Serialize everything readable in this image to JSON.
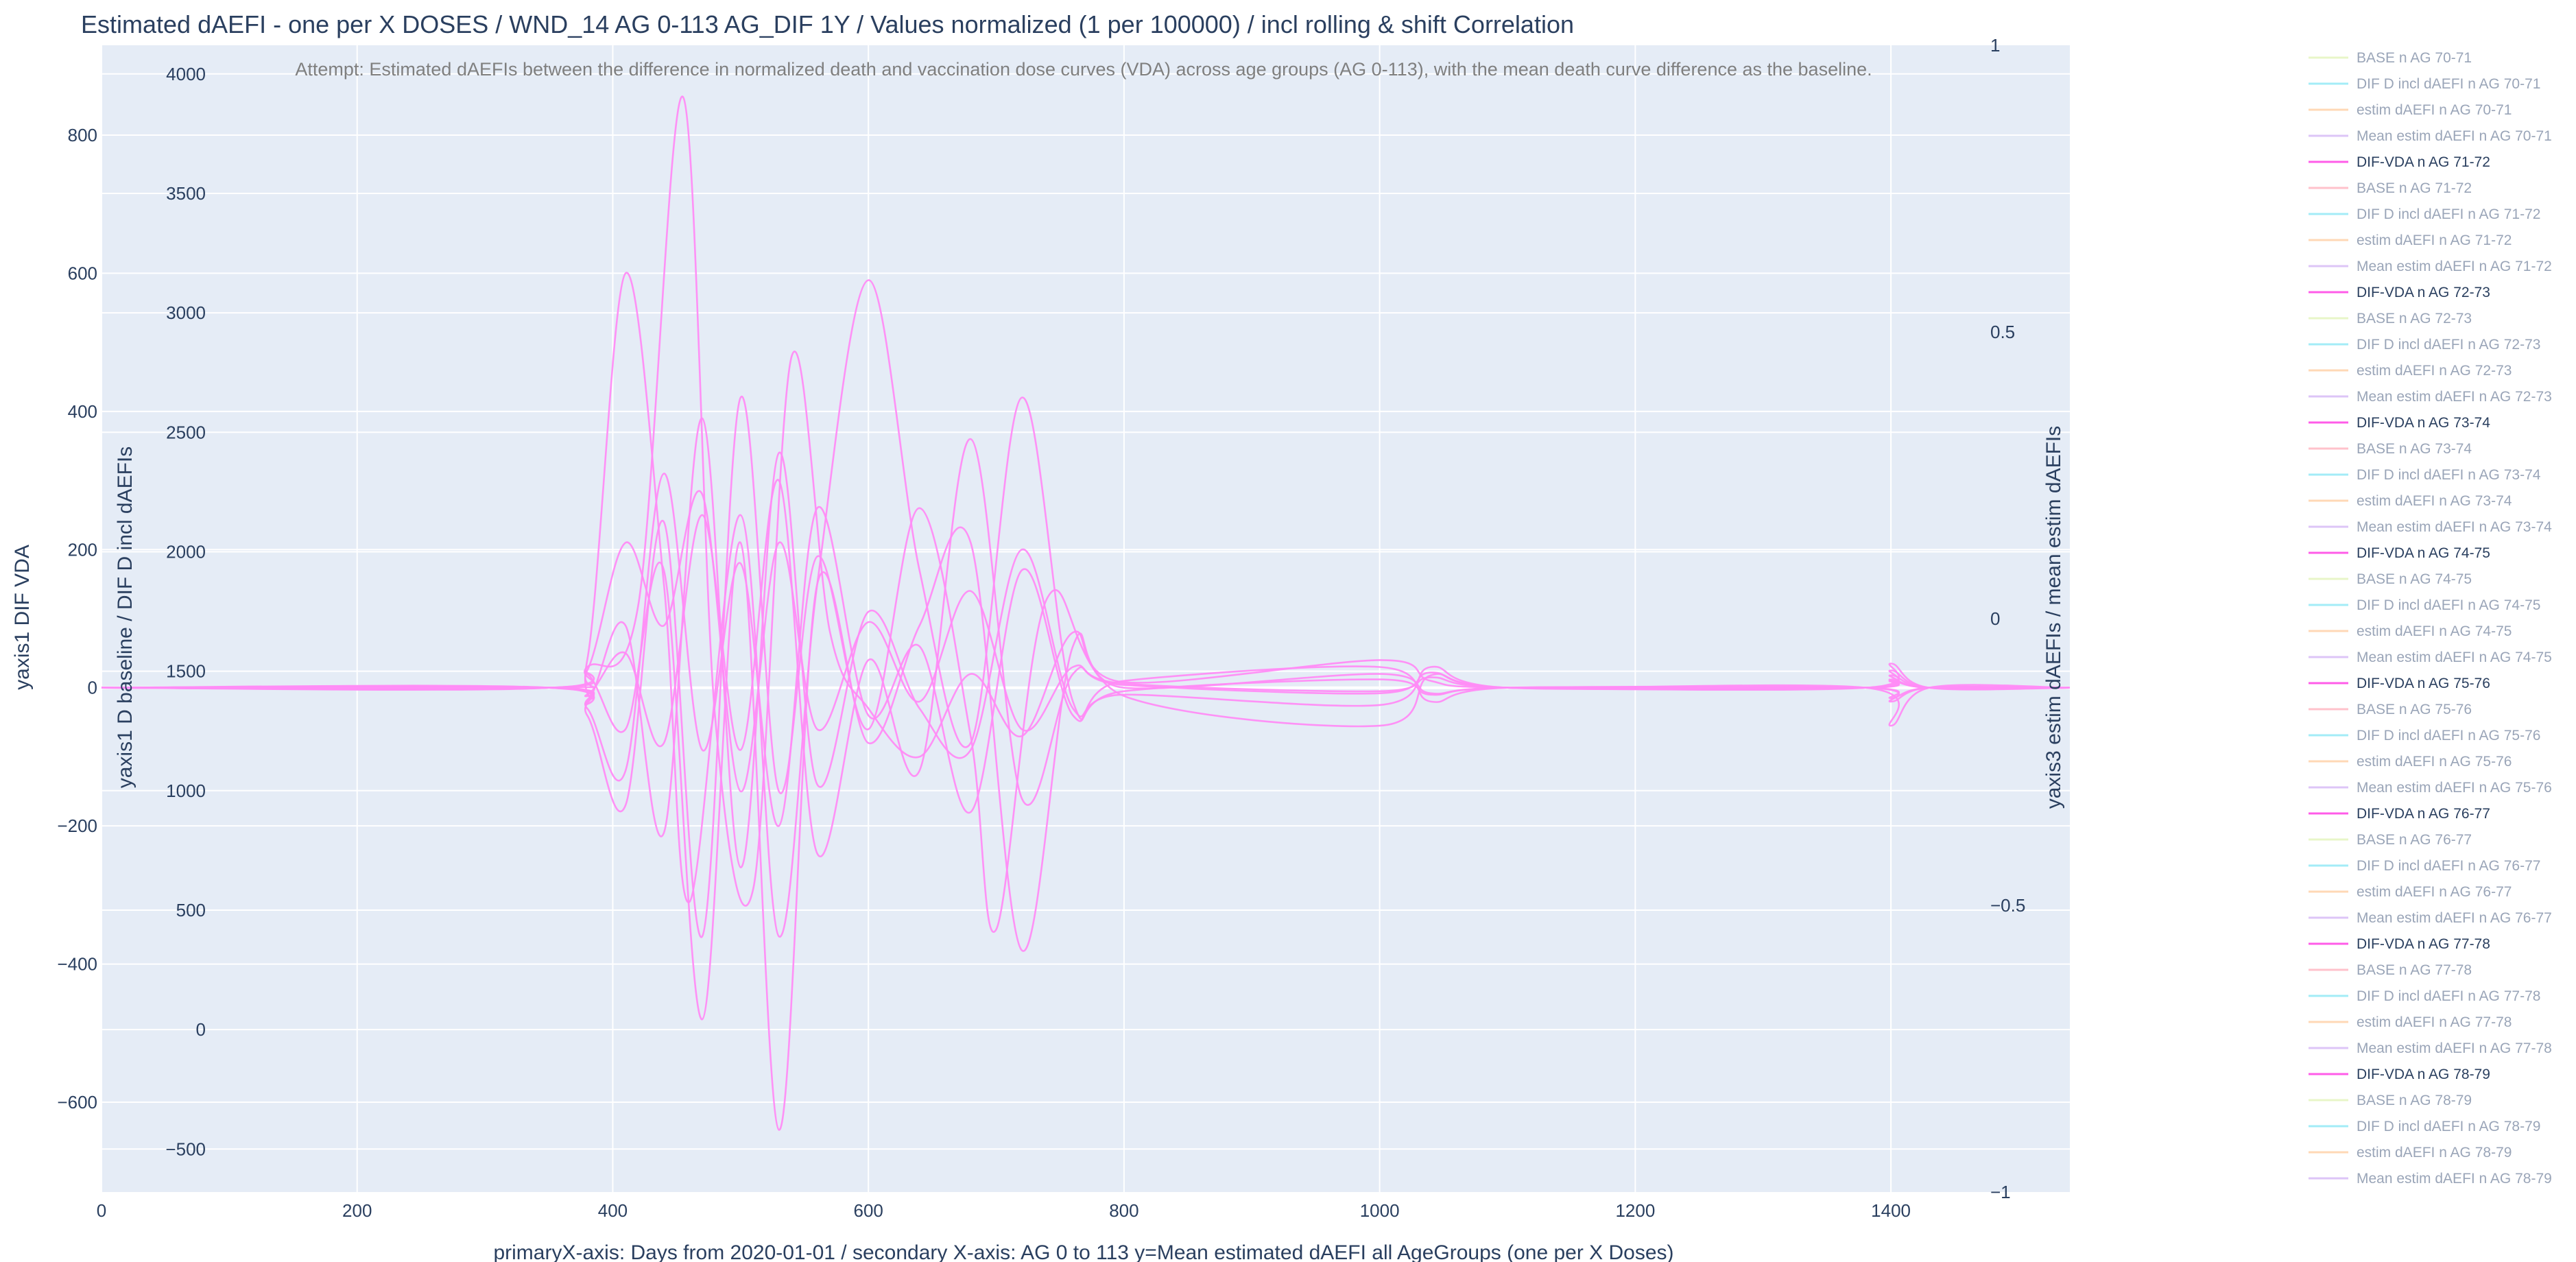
{
  "chart_data": {
    "type": "line",
    "title": "Estimated dAEFI - one per X DOSES / WND_14 AG 0-113 AG_DIF 1Y / Values normalized (1 per 100000) / incl rolling & shift Correlation",
    "annotation": "Attempt: Estimated dAEFIs between the difference in normalized death and vaccination dose curves (VDA) across age groups (AG 0-113), with the mean death curve difference as the baseline.",
    "xlabel": "primaryX-axis: Days from 2020-01-01  / secondary X-axis: AG 0 to 113 y=Mean estimated dAEFI all AgeGroups (one per X Doses)",
    "y1_label": "yaxis1 DIF VDA",
    "y2_label": "yaxis1 D baseline / DIF D incl dAEFIs",
    "y3_label": "yaxis3 estim dAEFIs / mean estim dAEFIs",
    "xlim": [
      0,
      1540
    ],
    "x_ticks": [
      "0",
      "200",
      "400",
      "600",
      "800",
      "1000",
      "1200",
      "1400"
    ],
    "x_tick_values": [
      0,
      200,
      400,
      600,
      800,
      1000,
      1200,
      1400
    ],
    "y1_ticks": [
      "−600",
      "−400",
      "−200",
      "0",
      "200",
      "400",
      "600",
      "800"
    ],
    "y1_tick_values": [
      -600,
      -400,
      -200,
      0,
      200,
      400,
      600,
      800
    ],
    "y1_range": [
      -730,
      930
    ],
    "y2_ticks": [
      "−500",
      "0",
      "500",
      "1000",
      "1500",
      "2000",
      "2500",
      "3000",
      "3500",
      "4000"
    ],
    "y2_tick_values": [
      -500,
      0,
      500,
      1000,
      1500,
      2000,
      2500,
      3000,
      3500,
      4000
    ],
    "y2_range": [
      -680,
      4120
    ],
    "y3_ticks": [
      "−1",
      "−0.5",
      "0",
      "0.5",
      "1"
    ],
    "y3_tick_values": [
      -1,
      -0.5,
      0,
      0.5,
      1
    ],
    "y3_range": [
      -1,
      1
    ],
    "grid": true,
    "legend_position": "right",
    "series_color": "#ff8cf5",
    "series": [
      {
        "name": "DIF-VDA n AG 71-72",
        "points": [
          [
            0,
            0
          ],
          [
            350,
            0
          ],
          [
            380,
            25
          ],
          [
            410,
            210
          ],
          [
            440,
            90
          ],
          [
            470,
            280
          ],
          [
            500,
            -150
          ],
          [
            530,
            210
          ],
          [
            560,
            -60
          ],
          [
            600,
            95
          ],
          [
            640,
            -20
          ],
          [
            680,
            140
          ],
          [
            720,
            -60
          ],
          [
            760,
            30
          ],
          [
            800,
            6
          ],
          [
            1000,
            -5
          ],
          [
            1040,
            15
          ],
          [
            1100,
            0
          ],
          [
            1380,
            0
          ],
          [
            1400,
            10
          ],
          [
            1430,
            0
          ],
          [
            1540,
            0
          ]
        ]
      },
      {
        "name": "DIF-VDA n AG 72-73",
        "points": [
          [
            0,
            0
          ],
          [
            350,
            0
          ],
          [
            380,
            -30
          ],
          [
            410,
            -120
          ],
          [
            440,
            310
          ],
          [
            470,
            -90
          ],
          [
            500,
            180
          ],
          [
            530,
            -200
          ],
          [
            560,
            260
          ],
          [
            600,
            -40
          ],
          [
            640,
            60
          ],
          [
            680,
            -180
          ],
          [
            720,
            170
          ],
          [
            760,
            -40
          ],
          [
            800,
            -5
          ],
          [
            1000,
            12
          ],
          [
            1040,
            -10
          ],
          [
            1100,
            0
          ],
          [
            1380,
            0
          ],
          [
            1400,
            -15
          ],
          [
            1430,
            0
          ],
          [
            1540,
            0
          ]
        ]
      },
      {
        "name": "DIF-VDA n AG 73-74",
        "points": [
          [
            0,
            0
          ],
          [
            350,
            0
          ],
          [
            380,
            40
          ],
          [
            410,
            600
          ],
          [
            440,
            150
          ],
          [
            460,
            -310
          ],
          [
            500,
            250
          ],
          [
            530,
            -360
          ],
          [
            560,
            150
          ],
          [
            600,
            590
          ],
          [
            640,
            170
          ],
          [
            680,
            -80
          ],
          [
            720,
            420
          ],
          [
            760,
            -20
          ],
          [
            800,
            10
          ],
          [
            1000,
            30
          ],
          [
            1040,
            -20
          ],
          [
            1100,
            0
          ],
          [
            1380,
            0
          ],
          [
            1400,
            25
          ],
          [
            1430,
            0
          ],
          [
            1540,
            0
          ]
        ]
      },
      {
        "name": "DIF-VDA n AG 74-75",
        "points": [
          [
            0,
            0
          ],
          [
            350,
            0
          ],
          [
            380,
            -20
          ],
          [
            410,
            90
          ],
          [
            440,
            -210
          ],
          [
            470,
            390
          ],
          [
            500,
            -260
          ],
          [
            530,
            340
          ],
          [
            560,
            -140
          ],
          [
            600,
            110
          ],
          [
            640,
            -30
          ],
          [
            680,
            -90
          ],
          [
            720,
            200
          ],
          [
            760,
            -30
          ],
          [
            800,
            -10
          ],
          [
            1000,
            -25
          ],
          [
            1040,
            30
          ],
          [
            1100,
            0
          ],
          [
            1380,
            0
          ],
          [
            1400,
            -20
          ],
          [
            1430,
            0
          ],
          [
            1540,
            0
          ]
        ]
      },
      {
        "name": "DIF-VDA n AG 75-76",
        "points": [
          [
            0,
            0
          ],
          [
            350,
            0
          ],
          [
            380,
            30
          ],
          [
            420,
            120
          ],
          [
            455,
            855
          ],
          [
            480,
            -40
          ],
          [
            510,
            -290
          ],
          [
            540,
            480
          ],
          [
            570,
            80
          ],
          [
            600,
            -30
          ],
          [
            640,
            -100
          ],
          [
            680,
            20
          ],
          [
            720,
            -70
          ],
          [
            760,
            80
          ],
          [
            800,
            8
          ],
          [
            1000,
            40
          ],
          [
            1040,
            10
          ],
          [
            1100,
            0
          ],
          [
            1380,
            0
          ],
          [
            1400,
            35
          ],
          [
            1430,
            0
          ],
          [
            1540,
            0
          ]
        ]
      },
      {
        "name": "DIF-VDA n AG 76-77",
        "points": [
          [
            0,
            0
          ],
          [
            350,
            0
          ],
          [
            380,
            -40
          ],
          [
            410,
            -170
          ],
          [
            440,
            240
          ],
          [
            470,
            -360
          ],
          [
            500,
            420
          ],
          [
            530,
            -150
          ],
          [
            560,
            190
          ],
          [
            600,
            -60
          ],
          [
            640,
            260
          ],
          [
            680,
            -70
          ],
          [
            700,
            -350
          ],
          [
            740,
            130
          ],
          [
            800,
            -12
          ],
          [
            1000,
            -55
          ],
          [
            1040,
            18
          ],
          [
            1100,
            0
          ],
          [
            1380,
            0
          ],
          [
            1400,
            -55
          ],
          [
            1430,
            0
          ],
          [
            1540,
            0
          ]
        ]
      },
      {
        "name": "DIF-VDA n AG 77-78",
        "points": [
          [
            0,
            0
          ],
          [
            350,
            0
          ],
          [
            380,
            20
          ],
          [
            410,
            -60
          ],
          [
            440,
            170
          ],
          [
            470,
            -480
          ],
          [
            500,
            210
          ],
          [
            530,
            -640
          ],
          [
            560,
            150
          ],
          [
            600,
            -80
          ],
          [
            640,
            90
          ],
          [
            680,
            210
          ],
          [
            720,
            -380
          ],
          [
            760,
            60
          ],
          [
            800,
            0
          ],
          [
            1000,
            20
          ],
          [
            1040,
            -8
          ],
          [
            1100,
            0
          ],
          [
            1380,
            0
          ],
          [
            1400,
            18
          ],
          [
            1430,
            0
          ],
          [
            1540,
            0
          ]
        ]
      },
      {
        "name": "DIF-VDA n AG 78-79",
        "points": [
          [
            0,
            0
          ],
          [
            350,
            0
          ],
          [
            380,
            -10
          ],
          [
            410,
            50
          ],
          [
            440,
            -80
          ],
          [
            470,
            250
          ],
          [
            500,
            -90
          ],
          [
            530,
            300
          ],
          [
            560,
            -240
          ],
          [
            600,
            40
          ],
          [
            640,
            -120
          ],
          [
            680,
            360
          ],
          [
            720,
            -160
          ],
          [
            760,
            20
          ],
          [
            800,
            4
          ],
          [
            1000,
            -8
          ],
          [
            1040,
            22
          ],
          [
            1100,
            0
          ],
          [
            1380,
            0
          ],
          [
            1400,
            12
          ],
          [
            1430,
            0
          ],
          [
            1540,
            0
          ]
        ]
      }
    ]
  },
  "legend": {
    "items": [
      {
        "label": "BASE n AG 70-71",
        "color": "#d9f0a3",
        "active": false
      },
      {
        "label": "DIF D incl dAEFI n AG 70-71",
        "color": "#66e0f2",
        "active": false
      },
      {
        "label": "estim dAEFI n AG 70-71",
        "color": "#ffbe85",
        "active": false
      },
      {
        "label": "Mean estim dAEFI n AG 70-71",
        "color": "#c79ff2",
        "active": false
      },
      {
        "label": "DIF-VDA n AG 71-72",
        "color": "#ff5ce8",
        "active": true
      },
      {
        "label": "BASE n AG 71-72",
        "color": "#ff9aa8",
        "active": false
      },
      {
        "label": "DIF D incl dAEFI n AG 71-72",
        "color": "#66e0f2",
        "active": false
      },
      {
        "label": "estim dAEFI n AG 71-72",
        "color": "#ffbe85",
        "active": false
      },
      {
        "label": "Mean estim dAEFI n AG 71-72",
        "color": "#c79ff2",
        "active": false
      },
      {
        "label": "DIF-VDA n AG 72-73",
        "color": "#ff5ce8",
        "active": true
      },
      {
        "label": "BASE n AG 72-73",
        "color": "#d9f0a3",
        "active": false
      },
      {
        "label": "DIF D incl dAEFI n AG 72-73",
        "color": "#66e0f2",
        "active": false
      },
      {
        "label": "estim dAEFI n AG 72-73",
        "color": "#ffbe85",
        "active": false
      },
      {
        "label": "Mean estim dAEFI n AG 72-73",
        "color": "#c79ff2",
        "active": false
      },
      {
        "label": "DIF-VDA n AG 73-74",
        "color": "#ff5ce8",
        "active": true
      },
      {
        "label": "BASE n AG 73-74",
        "color": "#ff9aa8",
        "active": false
      },
      {
        "label": "DIF D incl dAEFI n AG 73-74",
        "color": "#66e0f2",
        "active": false
      },
      {
        "label": "estim dAEFI n AG 73-74",
        "color": "#ffbe85",
        "active": false
      },
      {
        "label": "Mean estim dAEFI n AG 73-74",
        "color": "#c79ff2",
        "active": false
      },
      {
        "label": "DIF-VDA n AG 74-75",
        "color": "#ff5ce8",
        "active": true
      },
      {
        "label": "BASE n AG 74-75",
        "color": "#d9f0a3",
        "active": false
      },
      {
        "label": "DIF D incl dAEFI n AG 74-75",
        "color": "#66e0f2",
        "active": false
      },
      {
        "label": "estim dAEFI n AG 74-75",
        "color": "#ffbe85",
        "active": false
      },
      {
        "label": "Mean estim dAEFI n AG 74-75",
        "color": "#c79ff2",
        "active": false
      },
      {
        "label": "DIF-VDA n AG 75-76",
        "color": "#ff5ce8",
        "active": true
      },
      {
        "label": "BASE n AG 75-76",
        "color": "#ff9aa8",
        "active": false
      },
      {
        "label": "DIF D incl dAEFI n AG 75-76",
        "color": "#66e0f2",
        "active": false
      },
      {
        "label": "estim dAEFI n AG 75-76",
        "color": "#ffbe85",
        "active": false
      },
      {
        "label": "Mean estim dAEFI n AG 75-76",
        "color": "#c79ff2",
        "active": false
      },
      {
        "label": "DIF-VDA n AG 76-77",
        "color": "#ff5ce8",
        "active": true
      },
      {
        "label": "BASE n AG 76-77",
        "color": "#d9f0a3",
        "active": false
      },
      {
        "label": "DIF D incl dAEFI n AG 76-77",
        "color": "#66e0f2",
        "active": false
      },
      {
        "label": "estim dAEFI n AG 76-77",
        "color": "#ffbe85",
        "active": false
      },
      {
        "label": "Mean estim dAEFI n AG 76-77",
        "color": "#c79ff2",
        "active": false
      },
      {
        "label": "DIF-VDA n AG 77-78",
        "color": "#ff5ce8",
        "active": true
      },
      {
        "label": "BASE n AG 77-78",
        "color": "#ff9aa8",
        "active": false
      },
      {
        "label": "DIF D incl dAEFI n AG 77-78",
        "color": "#66e0f2",
        "active": false
      },
      {
        "label": "estim dAEFI n AG 77-78",
        "color": "#ffbe85",
        "active": false
      },
      {
        "label": "Mean estim dAEFI n AG 77-78",
        "color": "#c79ff2",
        "active": false
      },
      {
        "label": "DIF-VDA n AG 78-79",
        "color": "#ff5ce8",
        "active": true
      },
      {
        "label": "BASE n AG 78-79",
        "color": "#d9f0a3",
        "active": false
      },
      {
        "label": "DIF D incl dAEFI n AG 78-79",
        "color": "#66e0f2",
        "active": false
      },
      {
        "label": "estim dAEFI n AG 78-79",
        "color": "#ffbe85",
        "active": false
      },
      {
        "label": "Mean estim dAEFI n AG 78-79",
        "color": "#c79ff2",
        "active": false
      }
    ]
  },
  "colors": {
    "plot_bg": "#e5ecf6",
    "grid": "#ffffff",
    "text": "#2a3f5f",
    "annotation": "#7f7f7f",
    "legend_inactive_text": "#9aa5b8",
    "legend_active_text": "#2a3f5f"
  }
}
